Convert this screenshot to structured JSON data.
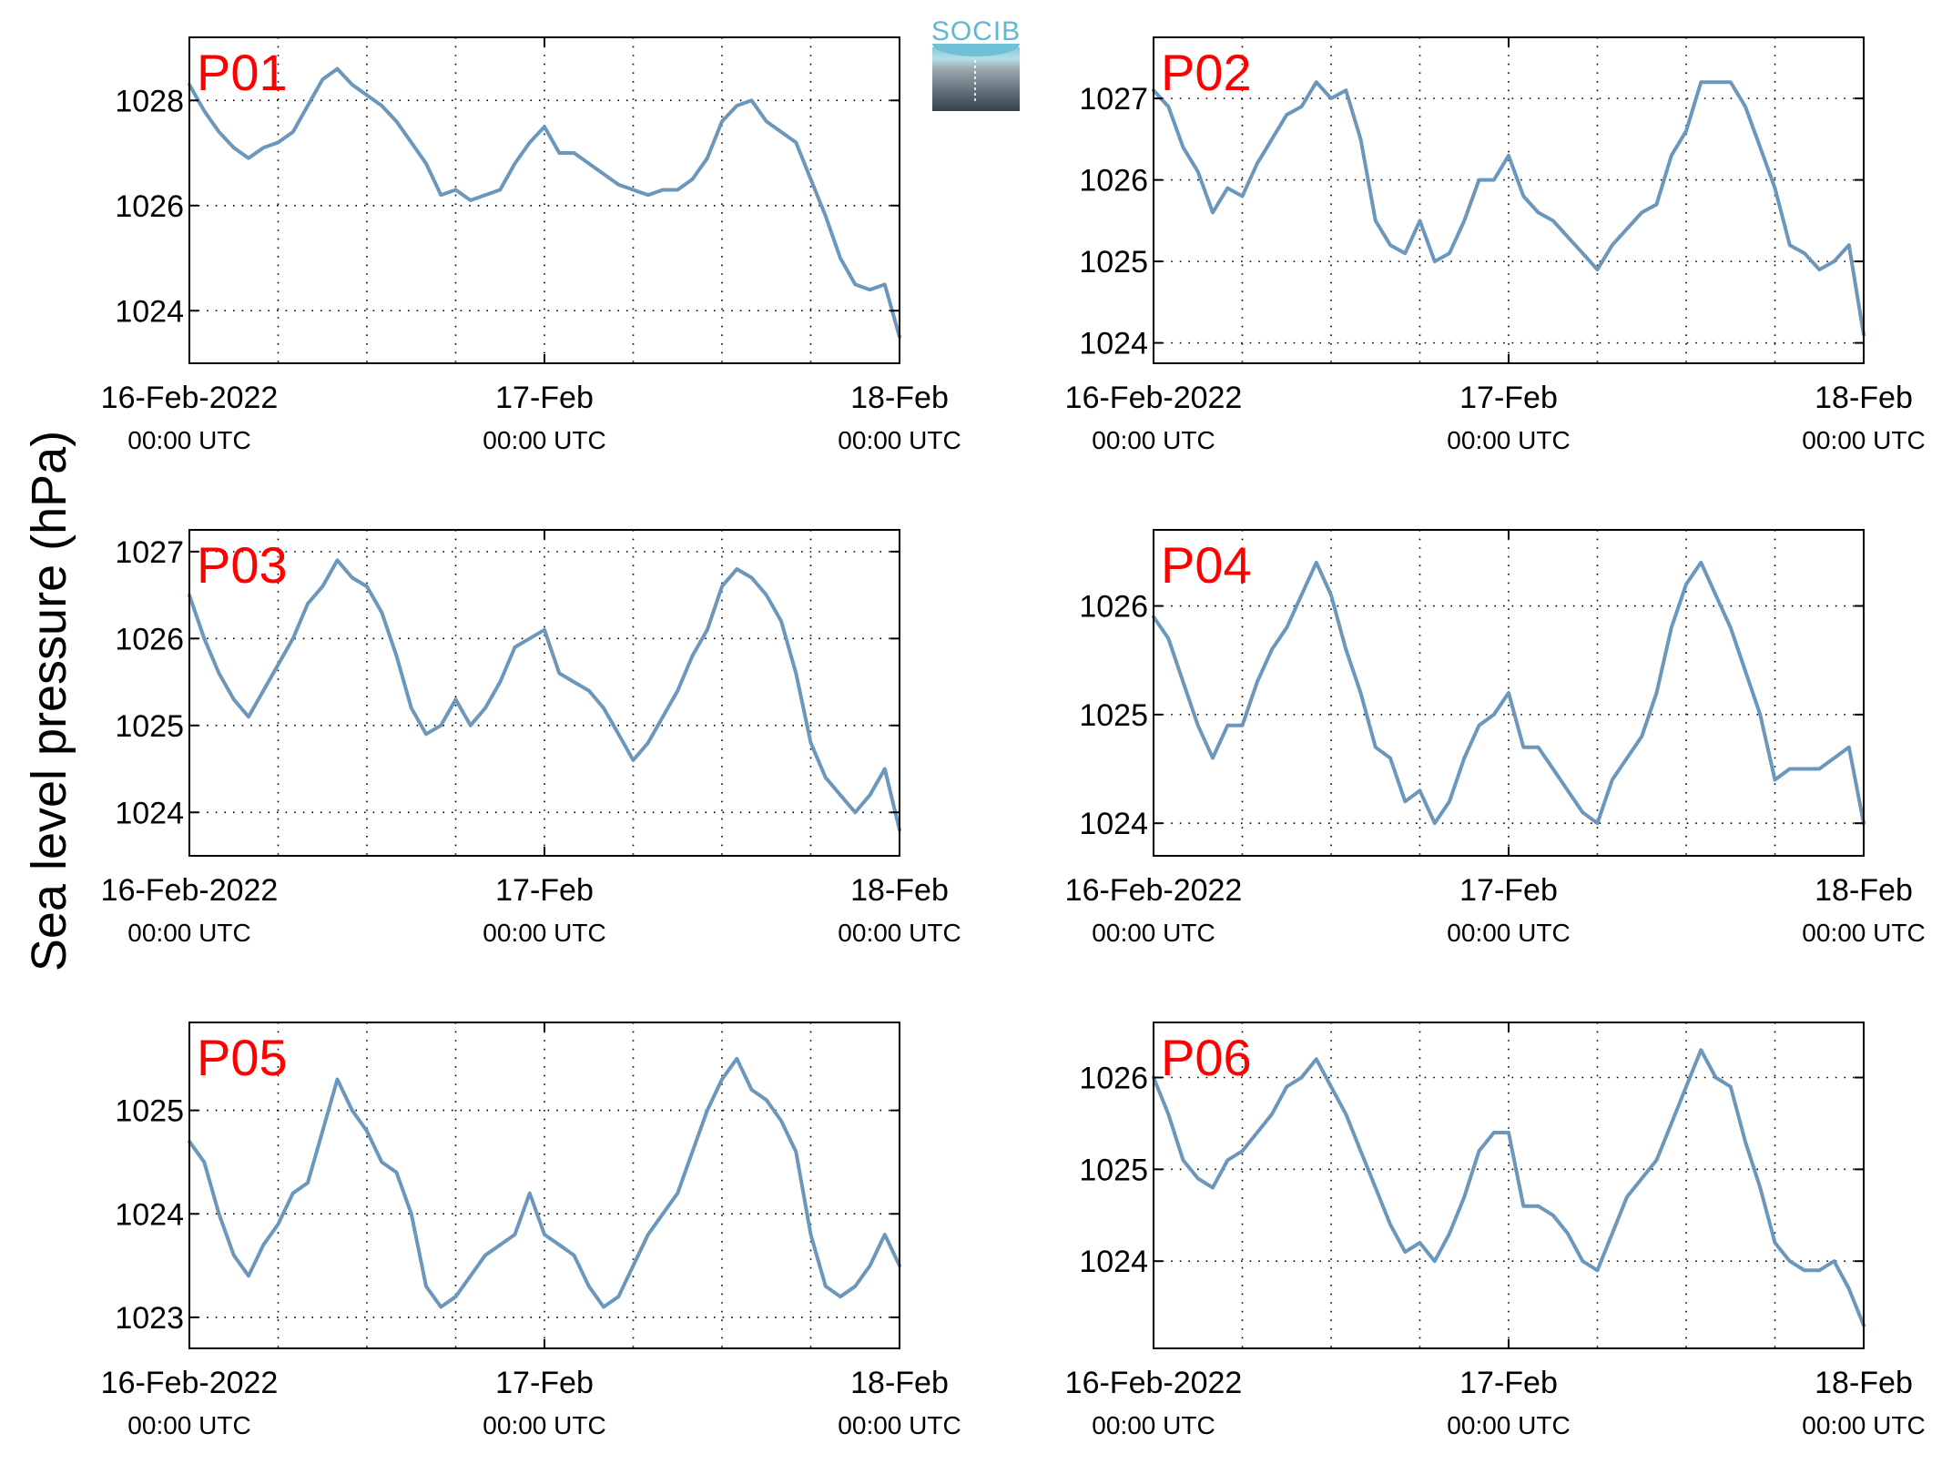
{
  "figure": {
    "ylabel": "Sea level pressure (hPa)",
    "logo_text": "SOCIB",
    "colors": {
      "line": "#6b97bc",
      "panel_label": "#ff0000",
      "axes": "#000000",
      "grid": "#000000"
    }
  },
  "chart_data": [
    {
      "type": "line",
      "label": "P01",
      "x_ticks": [
        {
          "top": "16-Feb-2022",
          "bottom": "00:00 UTC"
        },
        {
          "top": "17-Feb",
          "bottom": "00:00 UTC"
        },
        {
          "top": "18-Feb",
          "bottom": "00:00 UTC"
        }
      ],
      "xlim": [
        0,
        48
      ],
      "x_grid": [
        6,
        12,
        18,
        24,
        30,
        36,
        42
      ],
      "ylim": [
        1023.0,
        1029.2
      ],
      "yticks": [
        1024,
        1026,
        1028
      ],
      "grid": true,
      "x": [
        0,
        1,
        2,
        3,
        4,
        5,
        6,
        7,
        8,
        9,
        10,
        11,
        12,
        13,
        14,
        15,
        16,
        17,
        18,
        19,
        20,
        21,
        22,
        23,
        24,
        25,
        26,
        27,
        28,
        29,
        30,
        31,
        32,
        33,
        34,
        35,
        36,
        37,
        38,
        39,
        40,
        41,
        42,
        43,
        44,
        45,
        46,
        47,
        48
      ],
      "values": [
        1028.3,
        1027.8,
        1027.4,
        1027.1,
        1026.9,
        1027.1,
        1027.2,
        1027.4,
        1027.9,
        1028.4,
        1028.6,
        1028.3,
        1028.1,
        1027.9,
        1027.6,
        1027.2,
        1026.8,
        1026.2,
        1026.3,
        1026.1,
        1026.2,
        1026.3,
        1026.8,
        1027.2,
        1027.5,
        1027.0,
        1027.0,
        1026.8,
        1026.6,
        1026.4,
        1026.3,
        1026.2,
        1026.3,
        1026.3,
        1026.5,
        1026.9,
        1027.6,
        1027.9,
        1028.0,
        1027.6,
        1027.4,
        1027.2,
        1026.5,
        1025.8,
        1025.0,
        1024.5,
        1024.4,
        1024.5,
        1023.5
      ]
    },
    {
      "type": "line",
      "label": "P02",
      "x_ticks": [
        {
          "top": "16-Feb-2022",
          "bottom": "00:00 UTC"
        },
        {
          "top": "17-Feb",
          "bottom": "00:00 UTC"
        },
        {
          "top": "18-Feb",
          "bottom": "00:00 UTC"
        }
      ],
      "xlim": [
        0,
        48
      ],
      "x_grid": [
        6,
        12,
        18,
        24,
        30,
        36,
        42
      ],
      "ylim": [
        1023.75,
        1027.75
      ],
      "yticks": [
        1024,
        1025,
        1026,
        1027
      ],
      "grid": true,
      "x": [
        0,
        1,
        2,
        3,
        4,
        5,
        6,
        7,
        8,
        9,
        10,
        11,
        12,
        13,
        14,
        15,
        16,
        17,
        18,
        19,
        20,
        21,
        22,
        23,
        24,
        25,
        26,
        27,
        28,
        29,
        30,
        31,
        32,
        33,
        34,
        35,
        36,
        37,
        38,
        39,
        40,
        41,
        42,
        43,
        44,
        45,
        46,
        47,
        48
      ],
      "values": [
        1027.1,
        1026.9,
        1026.4,
        1026.1,
        1025.6,
        1025.9,
        1025.8,
        1026.2,
        1026.5,
        1026.8,
        1026.9,
        1027.2,
        1027.0,
        1027.1,
        1026.5,
        1025.5,
        1025.2,
        1025.1,
        1025.5,
        1025.0,
        1025.1,
        1025.5,
        1026.0,
        1026.0,
        1026.3,
        1025.8,
        1025.6,
        1025.5,
        1025.3,
        1025.1,
        1024.9,
        1025.2,
        1025.4,
        1025.6,
        1025.7,
        1026.3,
        1026.6,
        1027.2,
        1027.2,
        1027.2,
        1026.9,
        1026.4,
        1025.9,
        1025.2,
        1025.1,
        1024.9,
        1025.0,
        1025.2,
        1024.1
      ]
    },
    {
      "type": "line",
      "label": "P03",
      "x_ticks": [
        {
          "top": "16-Feb-2022",
          "bottom": "00:00 UTC"
        },
        {
          "top": "17-Feb",
          "bottom": "00:00 UTC"
        },
        {
          "top": "18-Feb",
          "bottom": "00:00 UTC"
        }
      ],
      "xlim": [
        0,
        48
      ],
      "x_grid": [
        6,
        12,
        18,
        24,
        30,
        36,
        42
      ],
      "ylim": [
        1023.5,
        1027.25
      ],
      "yticks": [
        1024,
        1025,
        1026,
        1027
      ],
      "grid": true,
      "x": [
        0,
        1,
        2,
        3,
        4,
        5,
        6,
        7,
        8,
        9,
        10,
        11,
        12,
        13,
        14,
        15,
        16,
        17,
        18,
        19,
        20,
        21,
        22,
        23,
        24,
        25,
        26,
        27,
        28,
        29,
        30,
        31,
        32,
        33,
        34,
        35,
        36,
        37,
        38,
        39,
        40,
        41,
        42,
        43,
        44,
        45,
        46,
        47,
        48
      ],
      "values": [
        1026.5,
        1026.0,
        1025.6,
        1025.3,
        1025.1,
        1025.4,
        1025.7,
        1026.0,
        1026.4,
        1026.6,
        1026.9,
        1026.7,
        1026.6,
        1026.3,
        1025.8,
        1025.2,
        1024.9,
        1025.0,
        1025.3,
        1025.0,
        1025.2,
        1025.5,
        1025.9,
        1026.0,
        1026.1,
        1025.6,
        1025.5,
        1025.4,
        1025.2,
        1024.9,
        1024.6,
        1024.8,
        1025.1,
        1025.4,
        1025.8,
        1026.1,
        1026.6,
        1026.8,
        1026.7,
        1026.5,
        1026.2,
        1025.6,
        1024.8,
        1024.4,
        1024.2,
        1024.0,
        1024.2,
        1024.5,
        1023.8
      ]
    },
    {
      "type": "line",
      "label": "P04",
      "x_ticks": [
        {
          "top": "16-Feb-2022",
          "bottom": "00:00 UTC"
        },
        {
          "top": "17-Feb",
          "bottom": "00:00 UTC"
        },
        {
          "top": "18-Feb",
          "bottom": "00:00 UTC"
        }
      ],
      "xlim": [
        0,
        48
      ],
      "x_grid": [
        6,
        12,
        18,
        24,
        30,
        36,
        42
      ],
      "ylim": [
        1023.7,
        1026.7
      ],
      "yticks": [
        1024,
        1025,
        1026
      ],
      "grid": true,
      "x": [
        0,
        1,
        2,
        3,
        4,
        5,
        6,
        7,
        8,
        9,
        10,
        11,
        12,
        13,
        14,
        15,
        16,
        17,
        18,
        19,
        20,
        21,
        22,
        23,
        24,
        25,
        26,
        27,
        28,
        29,
        30,
        31,
        32,
        33,
        34,
        35,
        36,
        37,
        38,
        39,
        40,
        41,
        42,
        43,
        44,
        45,
        46,
        47,
        48
      ],
      "values": [
        1025.9,
        1025.7,
        1025.3,
        1024.9,
        1024.6,
        1024.9,
        1024.9,
        1025.3,
        1025.6,
        1025.8,
        1026.1,
        1026.4,
        1026.1,
        1025.6,
        1025.2,
        1024.7,
        1024.6,
        1024.2,
        1024.3,
        1024.0,
        1024.2,
        1024.6,
        1024.9,
        1025.0,
        1025.2,
        1024.7,
        1024.7,
        1024.5,
        1024.3,
        1024.1,
        1024.0,
        1024.4,
        1024.6,
        1024.8,
        1025.2,
        1025.8,
        1026.2,
        1026.4,
        1026.1,
        1025.8,
        1025.4,
        1025.0,
        1024.4,
        1024.5,
        1024.5,
        1024.5,
        1024.6,
        1024.7,
        1024.0
      ]
    },
    {
      "type": "line",
      "label": "P05",
      "x_ticks": [
        {
          "top": "16-Feb-2022",
          "bottom": "00:00 UTC"
        },
        {
          "top": "17-Feb",
          "bottom": "00:00 UTC"
        },
        {
          "top": "18-Feb",
          "bottom": "00:00 UTC"
        }
      ],
      "xlim": [
        0,
        48
      ],
      "x_grid": [
        6,
        12,
        18,
        24,
        30,
        36,
        42
      ],
      "ylim": [
        1022.7,
        1025.85
      ],
      "yticks": [
        1023,
        1024,
        1025
      ],
      "grid": true,
      "x": [
        0,
        1,
        2,
        3,
        4,
        5,
        6,
        7,
        8,
        9,
        10,
        11,
        12,
        13,
        14,
        15,
        16,
        17,
        18,
        19,
        20,
        21,
        22,
        23,
        24,
        25,
        26,
        27,
        28,
        29,
        30,
        31,
        32,
        33,
        34,
        35,
        36,
        37,
        38,
        39,
        40,
        41,
        42,
        43,
        44,
        45,
        46,
        47,
        48
      ],
      "values": [
        1024.7,
        1024.5,
        1024.0,
        1023.6,
        1023.4,
        1023.7,
        1023.9,
        1024.2,
        1024.3,
        1024.8,
        1025.3,
        1025.0,
        1024.8,
        1024.5,
        1024.4,
        1024.0,
        1023.3,
        1023.1,
        1023.2,
        1023.4,
        1023.6,
        1023.7,
        1023.8,
        1024.2,
        1023.8,
        1023.7,
        1023.6,
        1023.3,
        1023.1,
        1023.2,
        1023.5,
        1023.8,
        1024.0,
        1024.2,
        1024.6,
        1025.0,
        1025.3,
        1025.5,
        1025.2,
        1025.1,
        1024.9,
        1024.6,
        1023.8,
        1023.3,
        1023.2,
        1023.3,
        1023.5,
        1023.8,
        1023.5
      ]
    },
    {
      "type": "line",
      "label": "P06",
      "x_ticks": [
        {
          "top": "16-Feb-2022",
          "bottom": "00:00 UTC"
        },
        {
          "top": "17-Feb",
          "bottom": "00:00 UTC"
        },
        {
          "top": "18-Feb",
          "bottom": "00:00 UTC"
        }
      ],
      "xlim": [
        0,
        48
      ],
      "x_grid": [
        6,
        12,
        18,
        24,
        30,
        36,
        42
      ],
      "ylim": [
        1023.05,
        1026.6
      ],
      "yticks": [
        1024,
        1025,
        1026
      ],
      "grid": true,
      "x": [
        0,
        1,
        2,
        3,
        4,
        5,
        6,
        7,
        8,
        9,
        10,
        11,
        12,
        13,
        14,
        15,
        16,
        17,
        18,
        19,
        20,
        21,
        22,
        23,
        24,
        25,
        26,
        27,
        28,
        29,
        30,
        31,
        32,
        33,
        34,
        35,
        36,
        37,
        38,
        39,
        40,
        41,
        42,
        43,
        44,
        45,
        46,
        47,
        48
      ],
      "values": [
        1026.0,
        1025.6,
        1025.1,
        1024.9,
        1024.8,
        1025.1,
        1025.2,
        1025.4,
        1025.6,
        1025.9,
        1026.0,
        1026.2,
        1025.9,
        1025.6,
        1025.2,
        1024.8,
        1024.4,
        1024.1,
        1024.2,
        1024.0,
        1024.3,
        1024.7,
        1025.2,
        1025.4,
        1025.4,
        1024.6,
        1024.6,
        1024.5,
        1024.3,
        1024.0,
        1023.9,
        1024.3,
        1024.7,
        1024.9,
        1025.1,
        1025.5,
        1025.9,
        1026.3,
        1026.0,
        1025.9,
        1025.3,
        1024.8,
        1024.2,
        1024.0,
        1023.9,
        1023.9,
        1024.0,
        1023.7,
        1023.3
      ]
    }
  ]
}
